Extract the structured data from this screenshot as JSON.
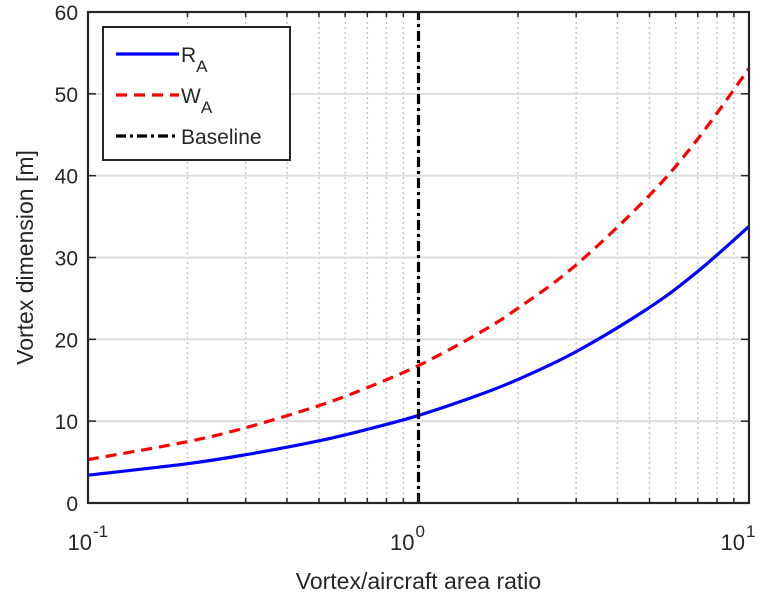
{
  "chart_data": {
    "type": "line",
    "title": "",
    "xlabel": "Vortex/aircraft area ratio",
    "ylabel": "Vortex dimension [m]",
    "xscale": "log",
    "xlim": [
      0.1,
      10
    ],
    "ylim": [
      0,
      60
    ],
    "grid": true,
    "legend_position": "top-left",
    "xticks": [
      {
        "value": 0.1,
        "base": "10",
        "exp": "-1"
      },
      {
        "value": 1,
        "base": "10",
        "exp": "0"
      },
      {
        "value": 10,
        "base": "10",
        "exp": "1"
      }
    ],
    "yticks": [
      0,
      10,
      20,
      30,
      40,
      50,
      60
    ],
    "series": [
      {
        "name": "R",
        "name_sub": "A",
        "color": "#0000ff",
        "style": "solid",
        "x": [
          0.1,
          0.2,
          0.3,
          0.5,
          0.7,
          1,
          1.5,
          2,
          3,
          5,
          7,
          10
        ],
        "y": [
          3.4,
          4.8,
          5.9,
          7.6,
          9.0,
          10.7,
          13.1,
          15.1,
          18.5,
          23.9,
          28.3,
          33.8
        ]
      },
      {
        "name": "W",
        "name_sub": "A",
        "color": "#ff0000",
        "style": "dashed",
        "x": [
          0.1,
          0.2,
          0.3,
          0.5,
          0.7,
          1,
          1.5,
          2,
          3,
          5,
          7,
          10
        ],
        "y": [
          5.3,
          7.5,
          9.2,
          11.9,
          14.1,
          16.8,
          20.6,
          23.8,
          29.1,
          37.6,
          44.5,
          53.1
        ]
      },
      {
        "name": "Baseline",
        "name_sub": "",
        "color": "#000000",
        "style": "dashdot",
        "x": [
          1,
          1
        ],
        "y": [
          0,
          60
        ]
      }
    ]
  }
}
